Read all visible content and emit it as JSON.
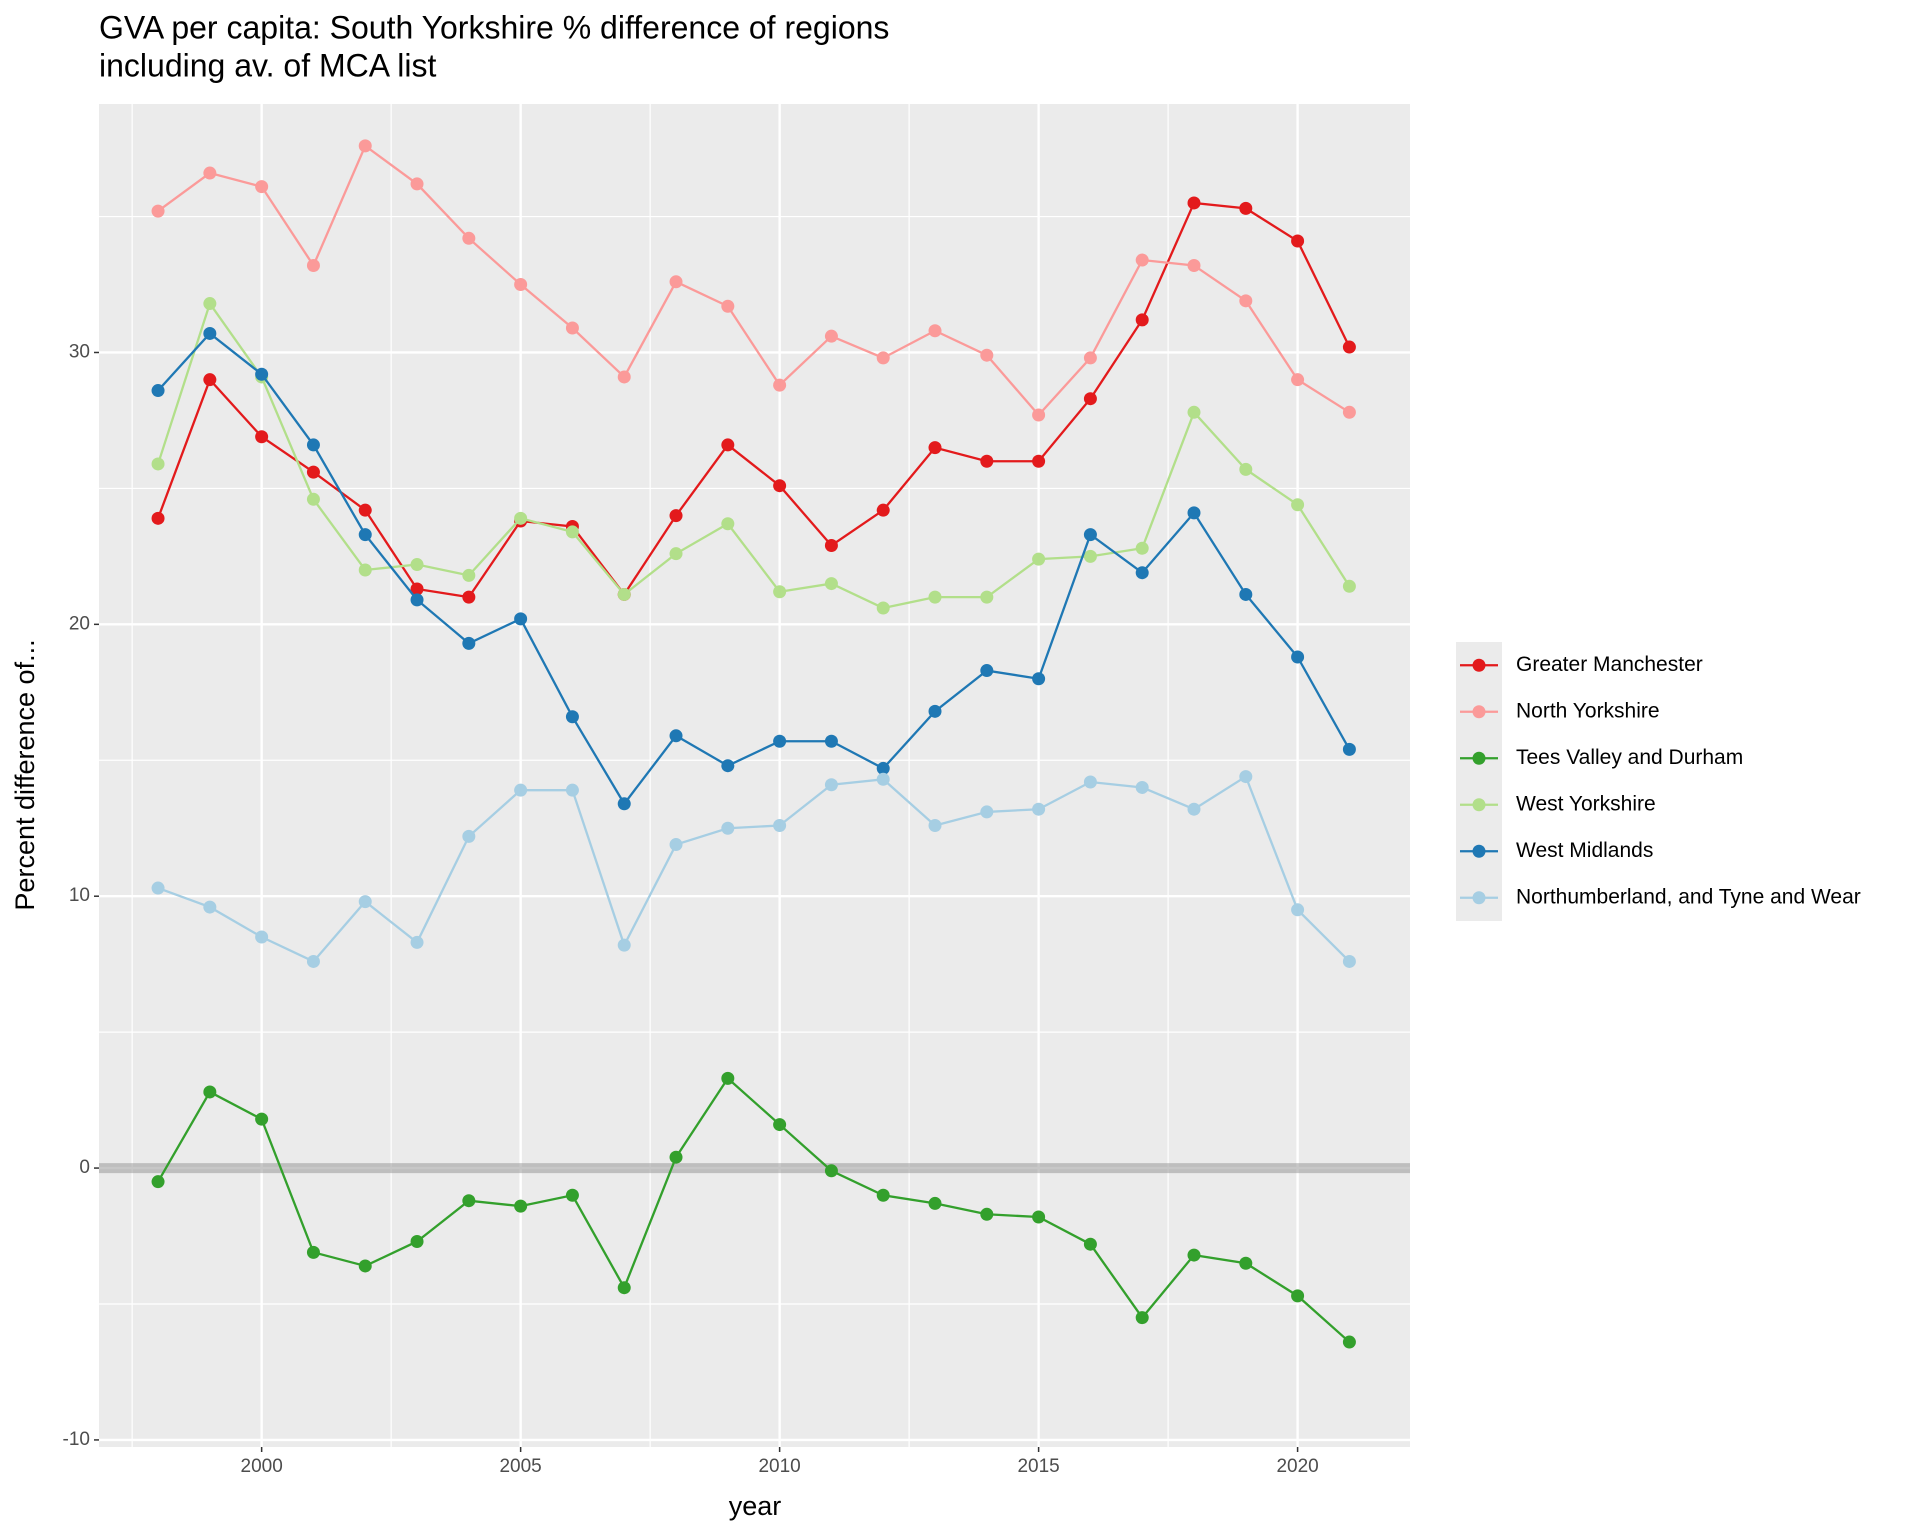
{
  "chart_data": {
    "type": "line",
    "title": [
      "GVA per capita: South Yorkshire % difference of regions",
      "including av. of MCA list"
    ],
    "x_label": "year",
    "y_label": "Percent difference of...",
    "x": [
      1998,
      1999,
      2000,
      2001,
      2002,
      2003,
      2004,
      2005,
      2006,
      2007,
      2008,
      2009,
      2010,
      2011,
      2012,
      2013,
      2014,
      2015,
      2016,
      2017,
      2018,
      2019,
      2020,
      2021
    ],
    "series": [
      {
        "name": "Greater Manchester",
        "color": "#e31a1c",
        "values": [
          23.9,
          29.0,
          26.9,
          25.6,
          24.2,
          21.3,
          21.0,
          23.8,
          23.6,
          21.1,
          24.0,
          26.6,
          25.1,
          22.9,
          24.2,
          26.5,
          26.0,
          26.0,
          28.3,
          31.2,
          35.5,
          35.3,
          34.1,
          30.2
        ]
      },
      {
        "name": "North Yorkshire",
        "color": "#fb9a99",
        "values": [
          35.2,
          36.6,
          36.1,
          33.2,
          37.6,
          36.2,
          34.2,
          32.5,
          30.9,
          29.1,
          32.6,
          31.7,
          28.8,
          30.6,
          29.8,
          30.8,
          29.9,
          27.7,
          29.8,
          33.4,
          33.2,
          31.9,
          29.0,
          27.8
        ]
      },
      {
        "name": "Tees Valley and Durham",
        "color": "#33a02c",
        "values": [
          -0.5,
          2.8,
          1.8,
          -3.1,
          -3.6,
          -2.7,
          -1.2,
          -1.4,
          -1.0,
          -4.4,
          0.4,
          3.3,
          1.6,
          -0.1,
          -1.0,
          -1.3,
          -1.7,
          -1.8,
          -2.8,
          -5.5,
          -3.2,
          -3.5,
          -4.7,
          -6.4
        ]
      },
      {
        "name": "West Yorkshire",
        "color": "#b2df8a",
        "values": [
          25.9,
          31.8,
          29.1,
          24.6,
          22.0,
          22.2,
          21.8,
          23.9,
          23.4,
          21.1,
          22.6,
          23.7,
          21.2,
          21.5,
          20.6,
          21.0,
          21.0,
          22.4,
          22.5,
          22.8,
          27.8,
          25.7,
          24.4,
          21.4
        ]
      },
      {
        "name": "West Midlands",
        "color": "#1f78b4",
        "values": [
          28.6,
          30.7,
          29.2,
          26.6,
          23.3,
          20.9,
          19.3,
          20.2,
          16.6,
          13.4,
          15.9,
          14.8,
          15.7,
          15.7,
          14.7,
          16.8,
          18.3,
          18.0,
          23.3,
          21.9,
          24.1,
          21.1,
          18.8,
          15.4
        ]
      },
      {
        "name": "Northumberland, and Tyne and Wear",
        "color": "#a6cee3",
        "values": [
          10.3,
          9.6,
          8.5,
          7.6,
          9.8,
          8.3,
          12.2,
          13.9,
          13.9,
          8.2,
          11.9,
          12.5,
          12.6,
          14.1,
          14.3,
          12.6,
          13.1,
          13.2,
          14.2,
          14.0,
          13.2,
          14.4,
          9.5,
          7.6
        ]
      }
    ],
    "reference_line": 0,
    "xlim": [
      1996.86,
      2022.17
    ],
    "ylim": [
      -10.26,
      39.14
    ],
    "xticks": [
      2000,
      2005,
      2010,
      2015,
      2020
    ],
    "yticks": [
      -10,
      0,
      10,
      20,
      30
    ],
    "grid": true,
    "legend": "right"
  }
}
